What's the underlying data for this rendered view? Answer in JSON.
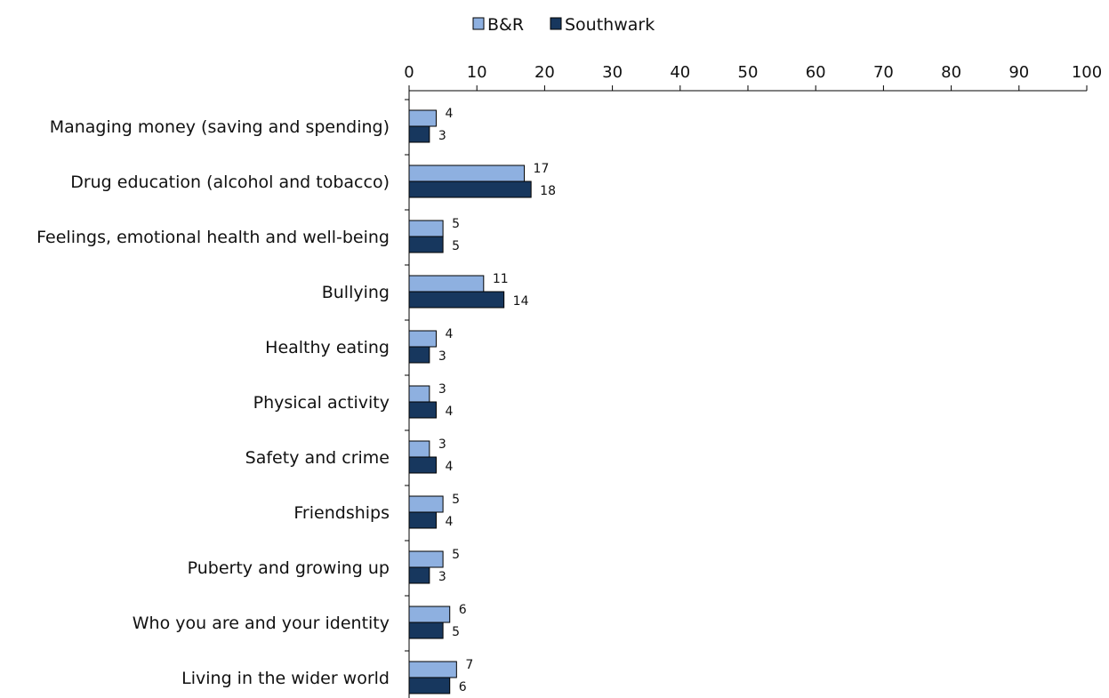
{
  "chart_data": {
    "type": "bar",
    "orientation": "horizontal",
    "categories": [
      "Managing money (saving and spending)",
      "Drug education (alcohol and tobacco)",
      "Feelings, emotional health and well-being",
      "Bullying",
      "Healthy eating",
      "Physical activity",
      "Safety and crime",
      "Friendships",
      "Puberty and growing up",
      "Who you are and your identity",
      "Living in the wider world"
    ],
    "series": [
      {
        "name": "B&R",
        "color": "#8eb0e0",
        "values": [
          4,
          17,
          5,
          11,
          4,
          3,
          3,
          5,
          5,
          6,
          7
        ]
      },
      {
        "name": "Southwark",
        "color": "#17375e",
        "values": [
          3,
          18,
          5,
          14,
          3,
          4,
          4,
          4,
          3,
          5,
          6
        ]
      }
    ],
    "xlim": [
      0,
      100
    ],
    "xticks": [
      0,
      10,
      20,
      30,
      40,
      50,
      60,
      70,
      80,
      90,
      100
    ],
    "axis_position": "top",
    "legend_position": "top-center",
    "grid": false
  }
}
